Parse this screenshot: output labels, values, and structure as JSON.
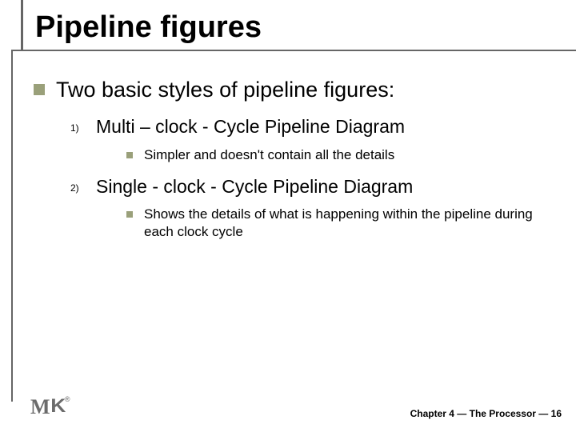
{
  "title": "Pipeline figures",
  "colors": {
    "bullet": "#9aa07a",
    "rule": "#666666",
    "text": "#000000",
    "logo": "#6b6b6b",
    "background": "#ffffff"
  },
  "typography": {
    "title_fontsize": 38,
    "lvl1_fontsize": 27,
    "lvl2_fontsize": 23,
    "lvl2_number_fontsize": 12,
    "lvl3_fontsize": 17,
    "footer_fontsize": 12,
    "font_family": "Arial"
  },
  "content": {
    "heading": "Two basic styles of pipeline figures:",
    "items": [
      {
        "number": "1)",
        "label": "Multi – clock - Cycle Pipeline Diagram",
        "detail": "Simpler and doesn't contain all the details"
      },
      {
        "number": "2)",
        "label": "Single - clock - Cycle Pipeline Diagram",
        "detail": "Shows the details of what is happening within the pipeline during each clock cycle"
      }
    ]
  },
  "footer": "Chapter 4 — The Processor — 16",
  "logo": {
    "m": "M",
    "k": "K",
    "reg": "®"
  }
}
